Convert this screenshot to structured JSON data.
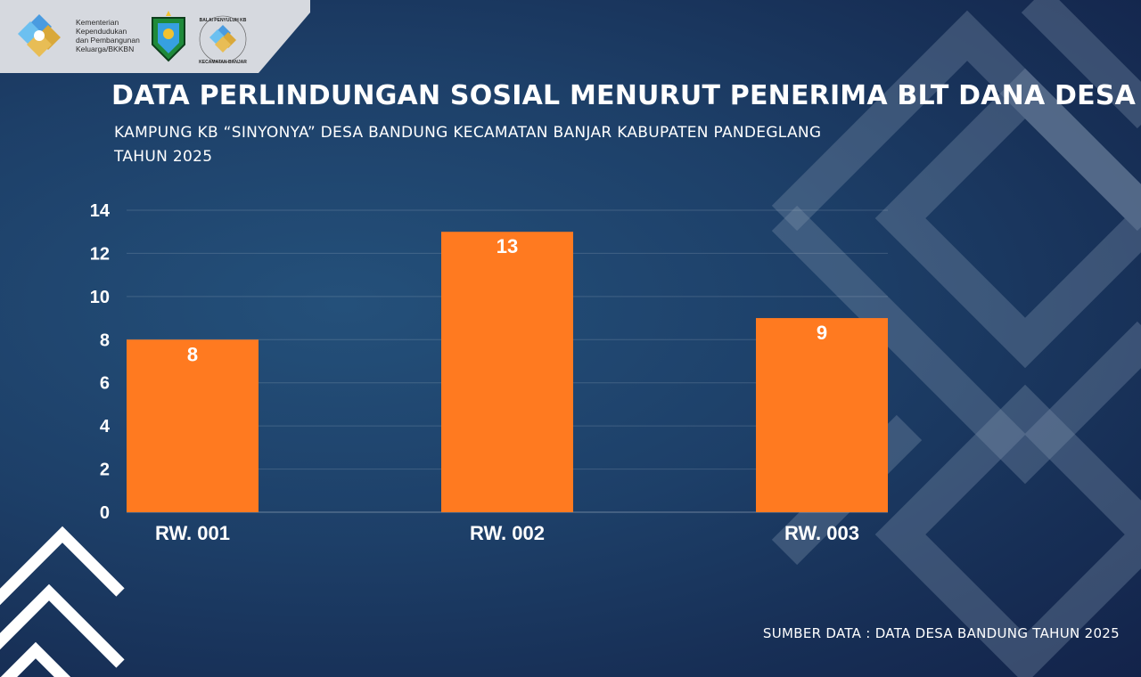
{
  "header": {
    "org_lines": [
      "Kementerian",
      "Kependudukan",
      "dan Pembangunan",
      "Keluarga/BKKBN"
    ],
    "logos": [
      "bkkbn-logo",
      "regency-emblem-logo",
      "balai-penyuluh-kb-logo"
    ],
    "emblem_caption_top": "BALAI PENYULUH KB",
    "emblem_caption_bottom": "KECAMATAN BANJAR"
  },
  "title": "DATA PERLINDUNGAN SOSIAL MENURUT PENERIMA BLT DANA DESA",
  "subtitle_line1": "KAMPUNG KB “SINYONYA” DESA BANDUNG KECAMATAN BANJAR KABUPATEN PANDEGLANG",
  "subtitle_line2": "TAHUN 2025",
  "source": "SUMBER DATA : DATA DESA BANDUNG TAHUN 2025",
  "colors": {
    "bar": "#ff7a20",
    "background": "#1d3f68",
    "text": "#ffffff"
  },
  "chart_data": {
    "type": "bar",
    "categories": [
      "RW. 001",
      "RW. 002",
      "RW. 003"
    ],
    "values": [
      8,
      13,
      9
    ],
    "data_labels": [
      "8",
      "13",
      "9"
    ],
    "y_ticks": [
      "0",
      "2",
      "4",
      "6",
      "8",
      "10",
      "12",
      "14"
    ],
    "ylim": [
      0,
      14
    ],
    "grid": true,
    "legend": "none"
  }
}
